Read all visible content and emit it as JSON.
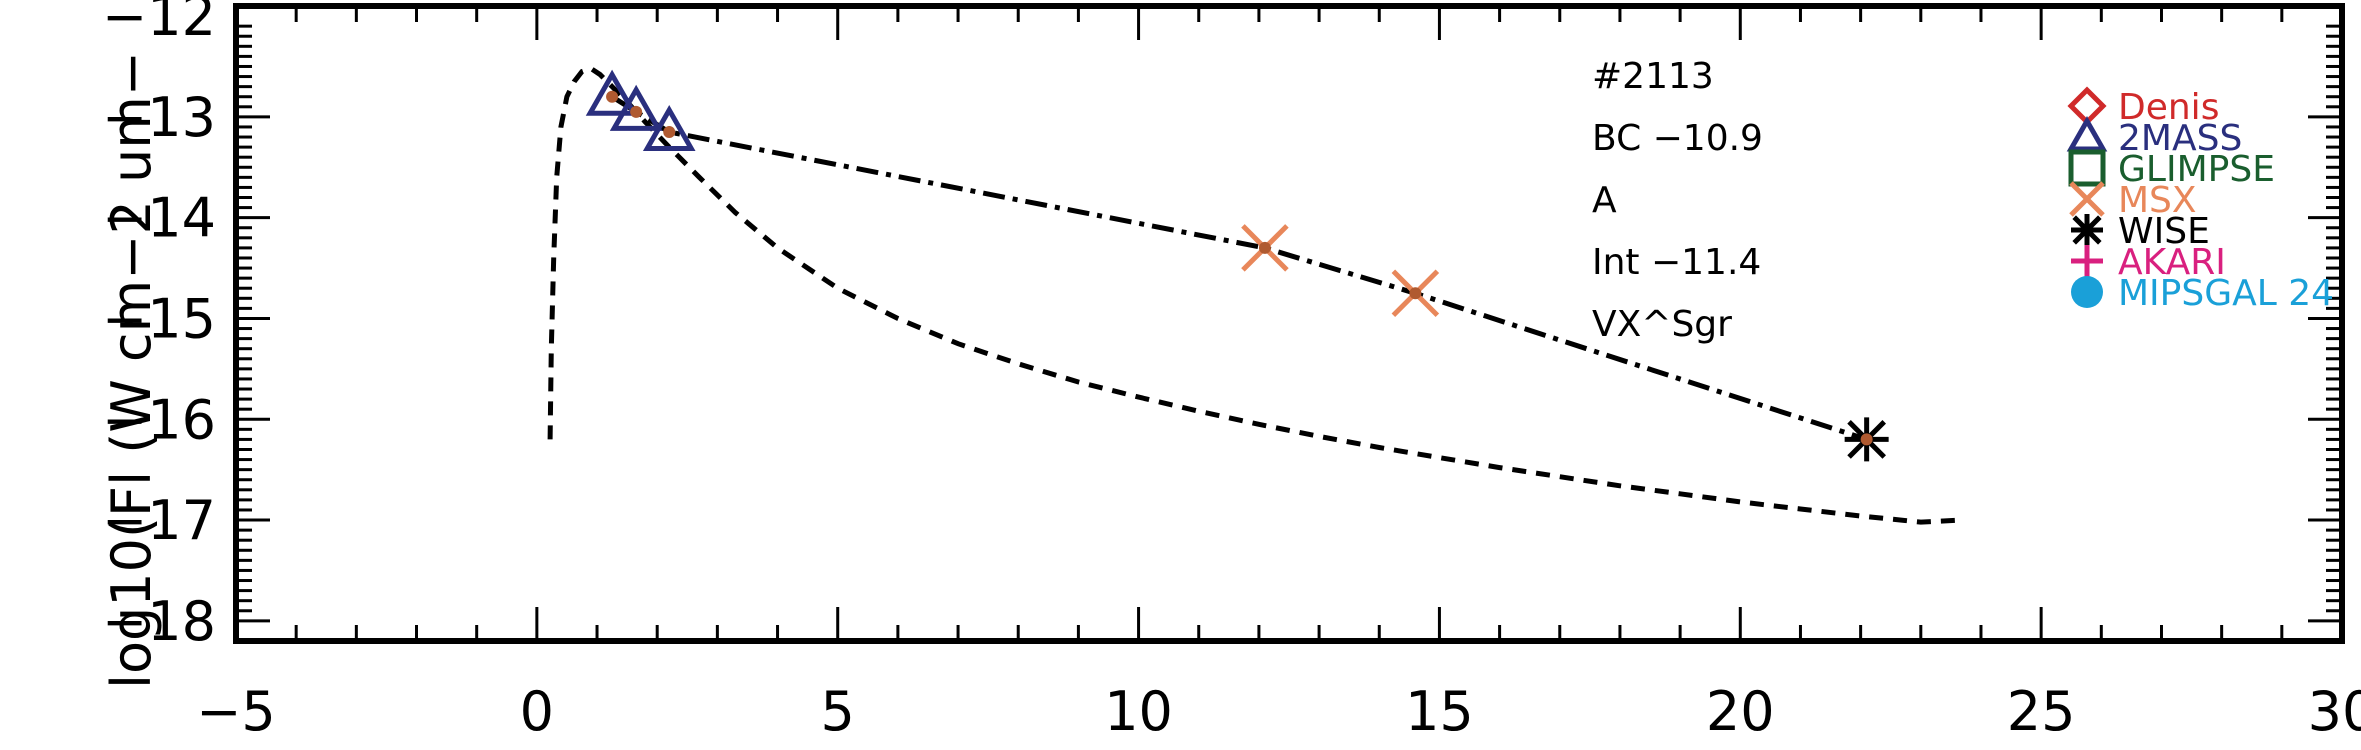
{
  "chart_data": {
    "type": "line",
    "title": "",
    "xlabel": "",
    "ylabel": "log10(Fl (W cm−2 um−",
    "xlim": [
      -5,
      30
    ],
    "ylim": [
      -18.2,
      -11.9
    ],
    "x_ticks": [
      "−5",
      "0",
      "5",
      "10",
      "15",
      "20",
      "25",
      "30"
    ],
    "x_tick_values": [
      -5,
      0,
      5,
      10,
      15,
      20,
      25,
      30
    ],
    "y_ticks": [
      "−12",
      "−13",
      "−14",
      "−15",
      "−16",
      "−17",
      "−18"
    ],
    "y_tick_values": [
      -12,
      -13,
      -14,
      -15,
      -16,
      -17,
      -18
    ],
    "annotations": [
      "#2113",
      "BC −10.9",
      "A",
      "Int −11.4",
      "VX^Sgr"
    ],
    "series": [
      {
        "style": "dashed",
        "x": [
          0.22,
          0.24,
          0.28,
          0.33,
          0.4,
          0.5,
          0.62,
          0.75,
          0.9,
          1.05,
          1.25,
          1.5,
          1.8,
          2.2,
          2.7,
          3.3,
          4,
          5,
          6,
          7,
          8,
          9,
          10,
          11,
          12,
          13,
          14,
          15,
          16,
          17,
          18,
          19,
          20,
          21,
          22,
          23,
          23.7
        ],
        "y": [
          -16.2,
          -15.3,
          -14.4,
          -13.6,
          -13.1,
          -12.8,
          -12.65,
          -12.55,
          -12.52,
          -12.58,
          -12.7,
          -12.85,
          -13.05,
          -13.3,
          -13.6,
          -13.95,
          -14.3,
          -14.7,
          -15.0,
          -15.25,
          -15.45,
          -15.63,
          -15.78,
          -15.92,
          -16.05,
          -16.17,
          -16.28,
          -16.38,
          -16.48,
          -16.57,
          -16.66,
          -16.74,
          -16.82,
          -16.89,
          -16.96,
          -17.02,
          -17.0
        ]
      },
      {
        "style": "dash-dot",
        "x": [
          1.25,
          1.65,
          2.2,
          12.1,
          14.6,
          22.1
        ],
        "y": [
          -12.8,
          -12.95,
          -13.15,
          -14.3,
          -14.75,
          -16.2
        ]
      }
    ],
    "points": [
      {
        "survey": "2MASS",
        "marker": "triangle",
        "x": 1.25,
        "y": -12.8
      },
      {
        "survey": "2MASS",
        "marker": "triangle",
        "x": 1.65,
        "y": -12.95
      },
      {
        "survey": "2MASS",
        "marker": "triangle",
        "x": 2.2,
        "y": -13.15
      },
      {
        "survey": "MSX",
        "marker": "x",
        "x": 12.1,
        "y": -14.3
      },
      {
        "survey": "MSX",
        "marker": "x",
        "x": 14.6,
        "y": -14.75
      },
      {
        "survey": "WISE",
        "marker": "asterisk",
        "x": 22.1,
        "y": -16.2
      }
    ],
    "legend": {
      "placement": "top-right",
      "entries": [
        {
          "label": "Denis",
          "marker": "diamond",
          "color": "#d02a2a"
        },
        {
          "label": "2MASS",
          "marker": "triangle",
          "color": "#2a2f7e"
        },
        {
          "label": "GLIMPSE",
          "marker": "square",
          "color": "#1a5e2e"
        },
        {
          "label": "MSX",
          "marker": "x",
          "color": "#e8875a"
        },
        {
          "label": "WISE",
          "marker": "asterisk",
          "color": "#000000"
        },
        {
          "label": "AKARI",
          "marker": "plus",
          "color": "#d9207f"
        },
        {
          "label": "MIPSGAL 24",
          "marker": "circle",
          "color": "#1aa0d8"
        }
      ]
    },
    "colors": {
      "axis": "#000000",
      "point_center": "#b05a30"
    }
  }
}
